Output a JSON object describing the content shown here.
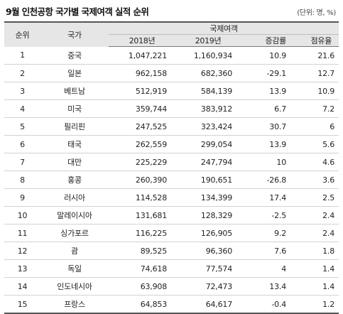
{
  "title": "9월 인천공항 국가별 국제여객 실적 순위",
  "unit": "(단위: 명, %)",
  "headers": {
    "rank": "순위",
    "country": "국가",
    "group": "국제여객",
    "y2018": "2018년",
    "y2019": "2019년",
    "growth": "증감률",
    "share": "점유율"
  },
  "rows": [
    {
      "rank": "1",
      "country": "중국",
      "y2018": "1,047,221",
      "y2019": "1,160,934",
      "growth": "10.9",
      "share": "21.6"
    },
    {
      "rank": "2",
      "country": "일본",
      "y2018": "962,158",
      "y2019": "682,360",
      "growth": "-29.1",
      "share": "12.7"
    },
    {
      "rank": "3",
      "country": "베트남",
      "y2018": "512,919",
      "y2019": "584,139",
      "growth": "13.9",
      "share": "10.9"
    },
    {
      "rank": "4",
      "country": "미국",
      "y2018": "359,744",
      "y2019": "383,912",
      "growth": "6.7",
      "share": "7.2"
    },
    {
      "rank": "5",
      "country": "필리핀",
      "y2018": "247,525",
      "y2019": "323,424",
      "growth": "30.7",
      "share": "6"
    },
    {
      "rank": "6",
      "country": "태국",
      "y2018": "262,559",
      "y2019": "299,054",
      "growth": "13.9",
      "share": "5.6"
    },
    {
      "rank": "7",
      "country": "대만",
      "y2018": "225,229",
      "y2019": "247,794",
      "growth": "10",
      "share": "4.6"
    },
    {
      "rank": "8",
      "country": "홍콩",
      "y2018": "260,390",
      "y2019": "190,651",
      "growth": "-26.8",
      "share": "3.6"
    },
    {
      "rank": "9",
      "country": "러시아",
      "y2018": "114,528",
      "y2019": "134,399",
      "growth": "17.4",
      "share": "2.5"
    },
    {
      "rank": "10",
      "country": "말레이시아",
      "y2018": "131,681",
      "y2019": "128,329",
      "growth": "-2.5",
      "share": "2.4"
    },
    {
      "rank": "11",
      "country": "싱가포르",
      "y2018": "116,225",
      "y2019": "126,905",
      "growth": "9.2",
      "share": "2.4"
    },
    {
      "rank": "12",
      "country": "괌",
      "y2018": "89,525",
      "y2019": "96,360",
      "growth": "7.6",
      "share": "1.8"
    },
    {
      "rank": "13",
      "country": "독일",
      "y2018": "74,618",
      "y2019": "77,574",
      "growth": "4",
      "share": "1.4"
    },
    {
      "rank": "14",
      "country": "인도네시아",
      "y2018": "63,908",
      "y2019": "72,473",
      "growth": "13.4",
      "share": "1.4"
    },
    {
      "rank": "15",
      "country": "프랑스",
      "y2018": "64,853",
      "y2019": "64,617",
      "growth": "-0.4",
      "share": "1.2"
    }
  ]
}
